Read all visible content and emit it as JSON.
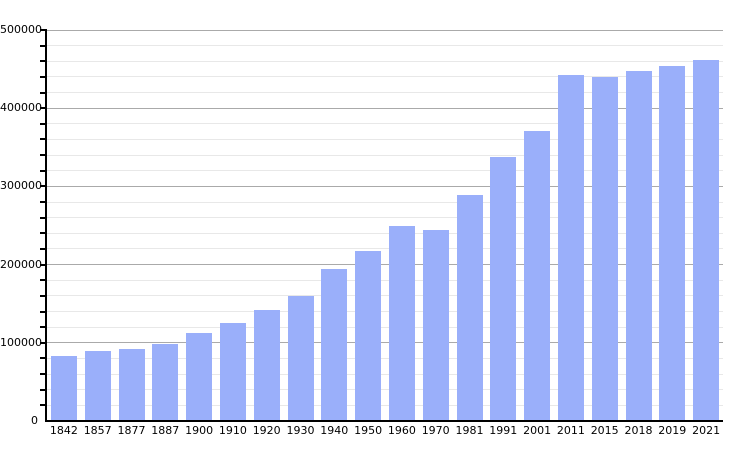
{
  "chart_data": {
    "type": "bar",
    "title": "",
    "xlabel": "",
    "ylabel": "",
    "categories": [
      "1842",
      "1857",
      "1877",
      "1887",
      "1900",
      "1910",
      "1920",
      "1930",
      "1940",
      "1950",
      "1960",
      "1970",
      "1981",
      "1991",
      "2001",
      "2011",
      "2015",
      "2018",
      "2019",
      "2021"
    ],
    "values": [
      83000,
      89000,
      92000,
      98000,
      112000,
      125000,
      142000,
      160000,
      195000,
      218000,
      250000,
      244000,
      289000,
      338000,
      371000,
      442000,
      440000,
      447000,
      454000,
      462000
    ],
    "ylim": [
      0,
      500000
    ],
    "y_major_step": 100000,
    "y_minor_step": 20000,
    "y_tick_labels": [
      "0",
      "100000",
      "200000",
      "300000",
      "400000",
      "500000"
    ],
    "grid": "horizontal-only",
    "legend": "none",
    "colors": {
      "bar_fill": "#9aaffa",
      "major_gridline": "#aaaaaa",
      "minor_gridline": "#e8e8e8",
      "axis": "#000000",
      "label_text": "#000000",
      "background": "#ffffff"
    }
  }
}
